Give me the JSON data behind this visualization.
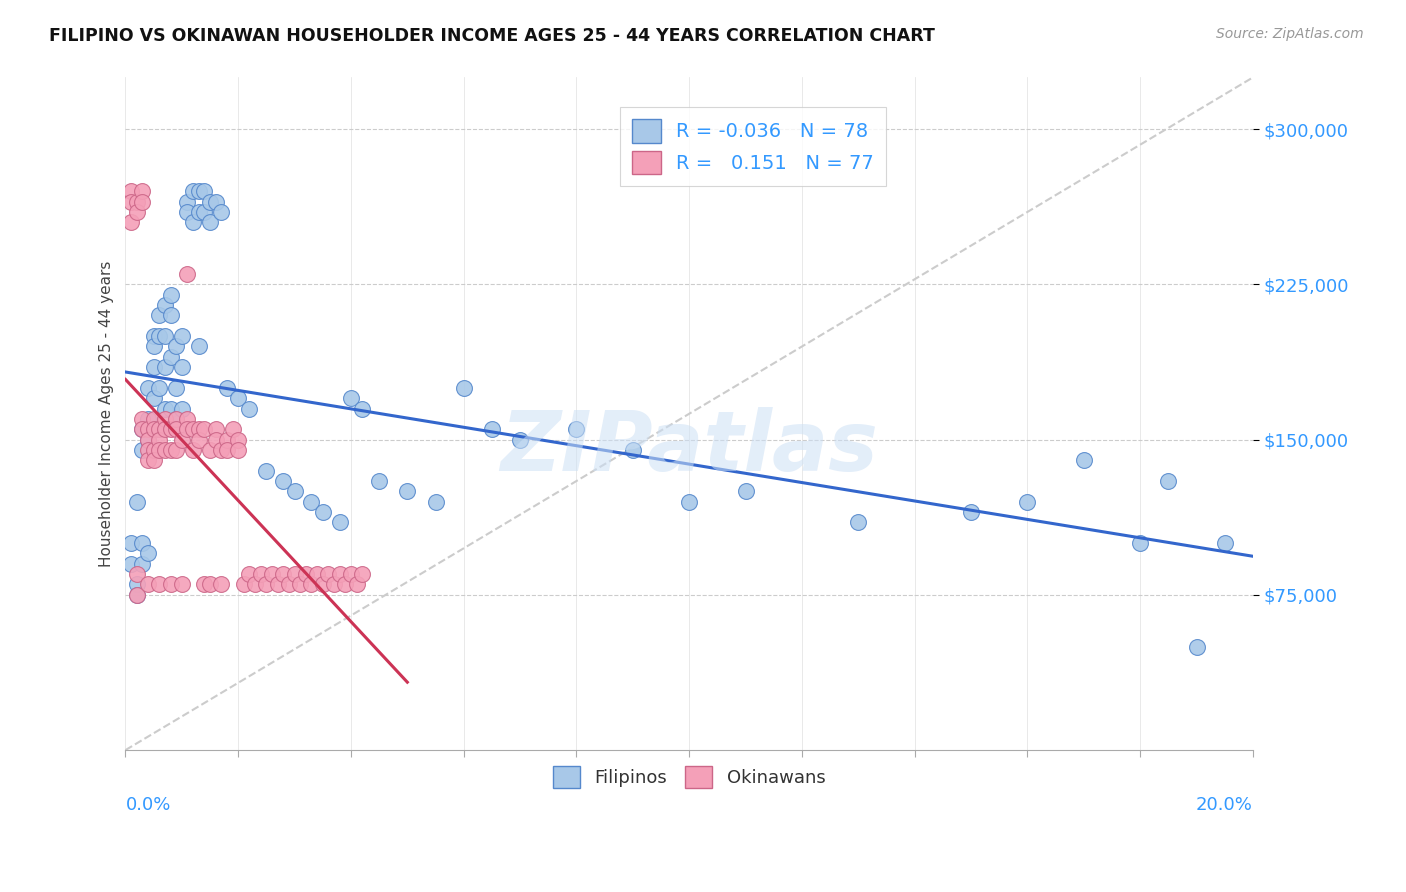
{
  "title": "FILIPINO VS OKINAWAN HOUSEHOLDER INCOME AGES 25 - 44 YEARS CORRELATION CHART",
  "source": "Source: ZipAtlas.com",
  "ylabel": "Householder Income Ages 25 - 44 years",
  "ytick_values": [
    75000,
    150000,
    225000,
    300000
  ],
  "xlim": [
    0.0,
    0.2
  ],
  "ylim": [
    0,
    325000
  ],
  "filipinos_R": -0.036,
  "filipinos_N": 78,
  "okinawans_R": 0.151,
  "okinawans_N": 77,
  "filipino_color": "#a8c8e8",
  "okinawan_color": "#f4a0b8",
  "filipino_edge_color": "#5588cc",
  "okinawan_edge_color": "#cc6688",
  "filipino_line_color": "#3366cc",
  "okinawan_line_color": "#cc3355",
  "tick_label_color": "#3399ff",
  "watermark": "ZIPatlas",
  "filipinos_x": [
    0.001,
    0.001,
    0.002,
    0.002,
    0.002,
    0.003,
    0.003,
    0.003,
    0.003,
    0.004,
    0.004,
    0.004,
    0.004,
    0.005,
    0.005,
    0.005,
    0.005,
    0.005,
    0.006,
    0.006,
    0.006,
    0.006,
    0.007,
    0.007,
    0.007,
    0.007,
    0.008,
    0.008,
    0.008,
    0.008,
    0.009,
    0.009,
    0.009,
    0.01,
    0.01,
    0.01,
    0.011,
    0.011,
    0.012,
    0.012,
    0.013,
    0.013,
    0.013,
    0.014,
    0.014,
    0.015,
    0.015,
    0.016,
    0.017,
    0.018,
    0.02,
    0.022,
    0.025,
    0.028,
    0.03,
    0.033,
    0.035,
    0.038,
    0.04,
    0.042,
    0.045,
    0.05,
    0.055,
    0.06,
    0.065,
    0.07,
    0.08,
    0.09,
    0.1,
    0.11,
    0.13,
    0.15,
    0.16,
    0.17,
    0.18,
    0.185,
    0.19,
    0.195
  ],
  "filipinos_y": [
    100000,
    90000,
    120000,
    80000,
    75000,
    155000,
    145000,
    100000,
    90000,
    175000,
    160000,
    150000,
    95000,
    200000,
    195000,
    185000,
    170000,
    155000,
    210000,
    200000,
    175000,
    155000,
    215000,
    200000,
    185000,
    165000,
    220000,
    210000,
    190000,
    165000,
    195000,
    175000,
    160000,
    200000,
    185000,
    165000,
    265000,
    260000,
    270000,
    255000,
    270000,
    260000,
    195000,
    270000,
    260000,
    265000,
    255000,
    265000,
    260000,
    175000,
    170000,
    165000,
    135000,
    130000,
    125000,
    120000,
    115000,
    110000,
    170000,
    165000,
    130000,
    125000,
    120000,
    175000,
    155000,
    150000,
    155000,
    145000,
    120000,
    125000,
    110000,
    115000,
    120000,
    140000,
    100000,
    130000,
    50000,
    100000
  ],
  "okinawans_x": [
    0.001,
    0.001,
    0.001,
    0.002,
    0.002,
    0.002,
    0.002,
    0.003,
    0.003,
    0.003,
    0.003,
    0.004,
    0.004,
    0.004,
    0.004,
    0.004,
    0.005,
    0.005,
    0.005,
    0.005,
    0.006,
    0.006,
    0.006,
    0.006,
    0.007,
    0.007,
    0.007,
    0.008,
    0.008,
    0.008,
    0.009,
    0.009,
    0.009,
    0.01,
    0.01,
    0.011,
    0.011,
    0.011,
    0.012,
    0.012,
    0.013,
    0.013,
    0.014,
    0.014,
    0.015,
    0.015,
    0.016,
    0.016,
    0.017,
    0.017,
    0.018,
    0.018,
    0.019,
    0.02,
    0.02,
    0.021,
    0.022,
    0.023,
    0.024,
    0.025,
    0.026,
    0.027,
    0.028,
    0.029,
    0.03,
    0.031,
    0.032,
    0.033,
    0.034,
    0.035,
    0.036,
    0.037,
    0.038,
    0.039,
    0.04,
    0.041,
    0.042
  ],
  "okinawans_y": [
    270000,
    265000,
    255000,
    265000,
    260000,
    85000,
    75000,
    270000,
    265000,
    160000,
    155000,
    155000,
    150000,
    145000,
    140000,
    80000,
    160000,
    155000,
    145000,
    140000,
    155000,
    150000,
    145000,
    80000,
    160000,
    155000,
    145000,
    155000,
    145000,
    80000,
    160000,
    155000,
    145000,
    150000,
    80000,
    160000,
    155000,
    230000,
    155000,
    145000,
    155000,
    150000,
    155000,
    80000,
    145000,
    80000,
    155000,
    150000,
    145000,
    80000,
    150000,
    145000,
    155000,
    150000,
    145000,
    80000,
    85000,
    80000,
    85000,
    80000,
    85000,
    80000,
    85000,
    80000,
    85000,
    80000,
    85000,
    80000,
    85000,
    80000,
    85000,
    80000,
    85000,
    80000,
    85000,
    80000,
    85000
  ]
}
